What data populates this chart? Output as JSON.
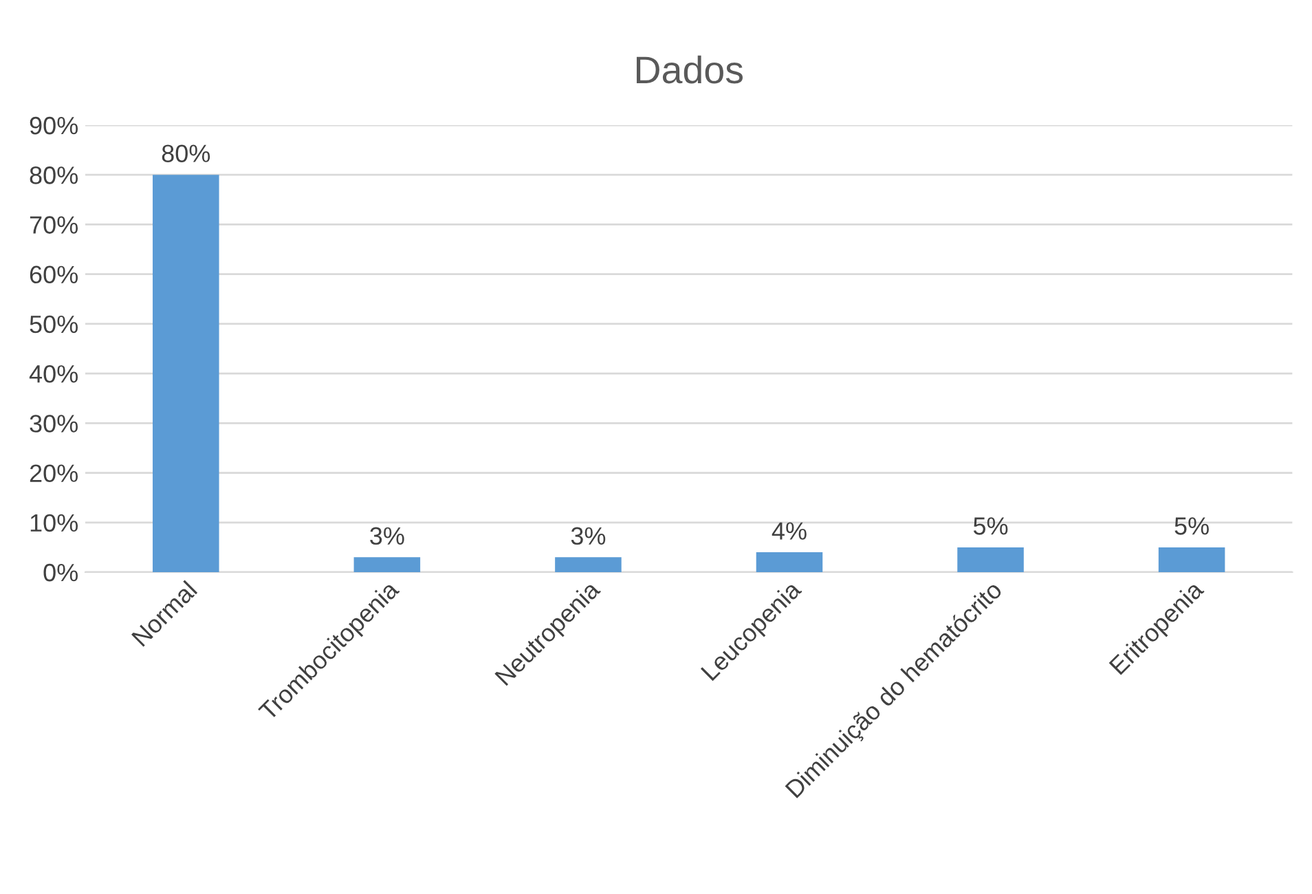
{
  "chart_data": {
    "type": "bar",
    "title": "Dados",
    "categories": [
      "Normal",
      "Trombocitopenia",
      "Neutropenia",
      "Leucopenia",
      "Diminuição do hematócrito",
      "Eritropenia"
    ],
    "values": [
      80,
      3,
      3,
      4,
      5,
      5
    ],
    "value_labels": [
      "80%",
      "3%",
      "3%",
      "4%",
      "5%",
      "5%"
    ],
    "color": "#5b9bd5",
    "ylim": [
      0,
      90
    ],
    "yticks": [
      {
        "value": 0,
        "label": "0%"
      },
      {
        "value": 10,
        "label": "10%"
      },
      {
        "value": 20,
        "label": "20%"
      },
      {
        "value": 30,
        "label": "30%"
      },
      {
        "value": 40,
        "label": "40%"
      },
      {
        "value": 50,
        "label": "50%"
      },
      {
        "value": 60,
        "label": "60%"
      },
      {
        "value": 70,
        "label": "70%"
      },
      {
        "value": 80,
        "label": "80%"
      },
      {
        "value": 90,
        "label": "90%"
      }
    ],
    "grid": "y"
  }
}
